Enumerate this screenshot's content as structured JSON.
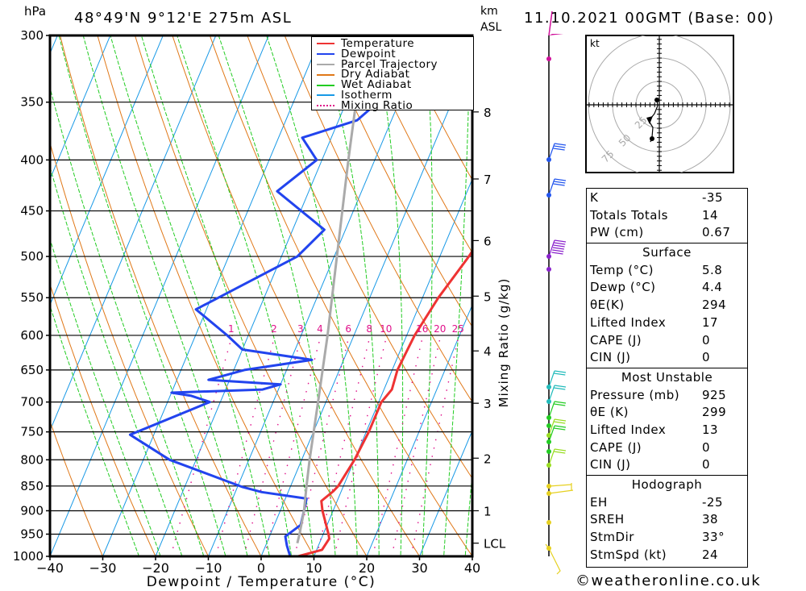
{
  "header": {
    "location": "48°49'N  9°12'E  275m  ASL",
    "datetime": "11.10.2021  00GMT  (Base: 00)",
    "pressure_unit": "hPa",
    "km_unit_line1": "km",
    "km_unit_line2": "ASL"
  },
  "legend": [
    {
      "label": "Temperature",
      "color": "#ee3333",
      "style": "solid"
    },
    {
      "label": "Dewpoint",
      "color": "#2244ee",
      "style": "solid"
    },
    {
      "label": "Parcel Trajectory",
      "color": "#aaaaaa",
      "style": "solid"
    },
    {
      "label": "Dry Adiabat",
      "color": "#e07818",
      "style": "solid"
    },
    {
      "label": "Wet Adiabat",
      "color": "#22cc22",
      "style": "solid"
    },
    {
      "label": "Isotherm",
      "color": "#1899e6",
      "style": "solid"
    },
    {
      "label": "Mixing Ratio",
      "color": "#e0108a",
      "style": "dotted"
    }
  ],
  "indices": {
    "general": [
      {
        "label": "K",
        "value": "-35"
      },
      {
        "label": "Totals Totals",
        "value": "14"
      },
      {
        "label": "PW (cm)",
        "value": "0.67"
      }
    ],
    "surface": {
      "title": "Surface",
      "rows": [
        {
          "label": "Temp (°C)",
          "value": "5.8"
        },
        {
          "label": "Dewp (°C)",
          "value": "4.4"
        },
        {
          "label": "θE(K)",
          "value": "294"
        },
        {
          "label": "Lifted Index",
          "value": "17"
        },
        {
          "label": "CAPE (J)",
          "value": "0"
        },
        {
          "label": "CIN (J)",
          "value": "0"
        }
      ]
    },
    "most_unstable": {
      "title": "Most Unstable",
      "rows": [
        {
          "label": "Pressure (mb)",
          "value": "925"
        },
        {
          "label": "θE (K)",
          "value": "299"
        },
        {
          "label": "Lifted Index",
          "value": "13"
        },
        {
          "label": "CAPE (J)",
          "value": "0"
        },
        {
          "label": "CIN (J)",
          "value": "0"
        }
      ]
    },
    "hodograph": {
      "title": "Hodograph",
      "rows": [
        {
          "label": "EH",
          "value": "-25"
        },
        {
          "label": "SREH",
          "value": "38"
        },
        {
          "label": "StmDir",
          "value": "33°"
        },
        {
          "label": "StmSpd (kt)",
          "value": "24"
        }
      ]
    }
  },
  "hodograph_plot": {
    "unit_label": "kt",
    "ring_labels": [
      "25",
      "50",
      "75"
    ]
  },
  "copyright": "©weatheronline.co.uk",
  "chart_data": {
    "type": "line",
    "title": "Skew-T log-P sounding",
    "xlabel": "Dewpoint / Temperature (°C)",
    "ylabel": "hPa",
    "right_axis_label": "Mixing Ratio (g/kg)",
    "xlim": [
      -40,
      40
    ],
    "ylim": [
      1000,
      300
    ],
    "x_ticks": [
      -40,
      -30,
      -20,
      -10,
      0,
      10,
      20,
      30,
      40
    ],
    "pressure_ticks": [
      300,
      350,
      400,
      450,
      500,
      550,
      600,
      650,
      700,
      750,
      800,
      850,
      900,
      950,
      1000
    ],
    "height_ticks_km": [
      {
        "label": "8",
        "p": 358
      },
      {
        "label": "7",
        "p": 418
      },
      {
        "label": "6",
        "p": 482
      },
      {
        "label": "5",
        "p": 548
      },
      {
        "label": "4",
        "p": 622
      },
      {
        "label": "3",
        "p": 702
      },
      {
        "label": "2",
        "p": 797
      },
      {
        "label": "1",
        "p": 900
      },
      {
        "label": "LCL",
        "p": 970
      }
    ],
    "mixing_ratio_labels": [
      "1",
      "2",
      "3",
      "4",
      "6",
      "8",
      "10",
      "16",
      "20",
      "25"
    ],
    "mixing_ratio_values": [
      1,
      2,
      3,
      4,
      6,
      8,
      10,
      16,
      20,
      25
    ],
    "series": [
      {
        "name": "Temperature",
        "points": [
          [
            1000,
            7.0
          ],
          [
            985,
            11.0
          ],
          [
            960,
            11.5
          ],
          [
            950,
            11.0
          ],
          [
            900,
            8.0
          ],
          [
            880,
            7.0
          ],
          [
            860,
            8.5
          ],
          [
            850,
            9.0
          ],
          [
            800,
            10.0
          ],
          [
            750,
            10.5
          ],
          [
            700,
            10.5
          ],
          [
            690,
            11.0
          ],
          [
            680,
            11.5
          ],
          [
            650,
            11.0
          ],
          [
            600,
            11.5
          ],
          [
            550,
            13.0
          ],
          [
            500,
            15.5
          ],
          [
            450,
            17.5
          ],
          [
            400,
            20.0
          ],
          [
            350,
            21.5
          ],
          [
            300,
            24.0
          ]
        ]
      },
      {
        "name": "Dewpoint",
        "points": [
          [
            1000,
            5.5
          ],
          [
            975,
            4.0
          ],
          [
            955,
            3.0
          ],
          [
            930,
            5.0
          ],
          [
            900,
            4.5
          ],
          [
            875,
            4.0
          ],
          [
            862,
            -5.0
          ],
          [
            852,
            -9.0
          ],
          [
            800,
            -25.0
          ],
          [
            755,
            -34.5
          ],
          [
            700,
            -22.0
          ],
          [
            690,
            -26.0
          ],
          [
            685,
            -30.0
          ],
          [
            680,
            -13.0
          ],
          [
            672,
            -10.0
          ],
          [
            665,
            -24.0
          ],
          [
            660,
            -22.0
          ],
          [
            650,
            -18.0
          ],
          [
            635,
            -6.0
          ],
          [
            620,
            -20.0
          ],
          [
            600,
            -24.0
          ],
          [
            565,
            -32.0
          ],
          [
            500,
            -17.0
          ],
          [
            470,
            -14.0
          ],
          [
            430,
            -26.0
          ],
          [
            400,
            -21.0
          ],
          [
            380,
            -25.5
          ],
          [
            365,
            -16.5
          ],
          [
            350,
            -14.0
          ],
          [
            300,
            -24.0
          ]
        ]
      },
      {
        "name": "Parcel Trajectory",
        "points": [
          [
            970,
            5.8
          ],
          [
            950,
            5.5
          ],
          [
            900,
            4.5
          ],
          [
            850,
            3.0
          ],
          [
            800,
            1.5
          ],
          [
            700,
            -1.5
          ],
          [
            600,
            -5.0
          ],
          [
            500,
            -9.5
          ],
          [
            400,
            -15.0
          ],
          [
            310,
            -21.0
          ]
        ]
      }
    ],
    "wind_barbs_note": "wind profile plotted along the right-hand staff; speeds in kt"
  }
}
